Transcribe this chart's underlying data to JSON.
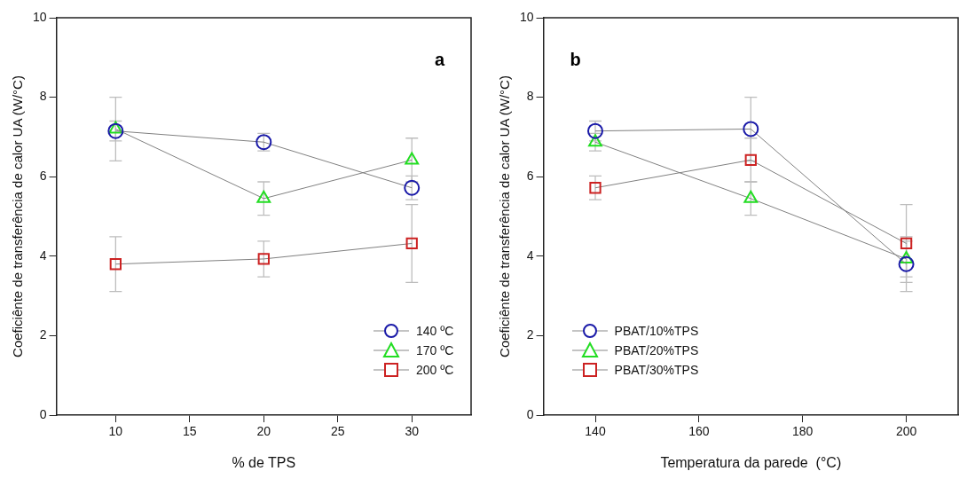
{
  "chart_data": [
    {
      "type": "line",
      "xlabel": "% de TPS",
      "ylabel": "Coeficiênte de transferência de calor UA (W/°C)",
      "x": [
        10,
        20,
        30
      ],
      "xlim": [
        6,
        34
      ],
      "xticks": [
        10,
        15,
        20,
        25,
        30
      ],
      "ylim": [
        0,
        10
      ],
      "yticks": [
        0,
        2,
        4,
        6,
        8,
        10
      ],
      "legend": "bottom right",
      "annotations": [
        "a"
      ],
      "line_style": "solid",
      "series": [
        {
          "name": "140 ºC",
          "color": "#1a1aa8",
          "marker": "circle",
          "values": [
            7.15,
            6.87,
            5.72
          ],
          "errors": [
            0.25,
            0.22,
            0.3
          ]
        },
        {
          "name": "170 ºC",
          "color": "#22dd22",
          "marker": "triangle",
          "values": [
            7.2,
            5.45,
            6.42
          ],
          "errors": [
            0.8,
            0.42,
            0.55
          ]
        },
        {
          "name": "200 ºC",
          "color": "#cc2222",
          "marker": "square",
          "values": [
            3.8,
            3.93,
            4.32
          ],
          "errors": [
            0.69,
            0.45,
            0.98
          ]
        }
      ]
    },
    {
      "type": "line",
      "xlabel": "Temperatura da parede  (°C)",
      "ylabel": "Coeficiênte de transferência de calor UA (W/°C)",
      "x": [
        140,
        170,
        200
      ],
      "xlim": [
        130,
        210
      ],
      "xticks": [
        140,
        160,
        180,
        200
      ],
      "ylim": [
        0,
        10
      ],
      "yticks": [
        0,
        2,
        4,
        6,
        8,
        10
      ],
      "legend": "bottom left",
      "annotations": [
        "b"
      ],
      "line_style": "solid",
      "series": [
        {
          "name": "PBAT/10%TPS",
          "color": "#1a1aa8",
          "marker": "circle",
          "values": [
            7.15,
            7.2,
            3.8
          ],
          "errors": [
            0.25,
            0.8,
            0.69
          ]
        },
        {
          "name": "PBAT/20%TPS",
          "color": "#22dd22",
          "marker": "triangle",
          "values": [
            6.87,
            5.45,
            3.93
          ],
          "errors": [
            0.22,
            0.42,
            0.45
          ]
        },
        {
          "name": "PBAT/30%TPS",
          "color": "#cc2222",
          "marker": "square",
          "values": [
            5.72,
            6.42,
            4.32
          ],
          "errors": [
            0.3,
            0.55,
            0.98
          ]
        }
      ]
    }
  ]
}
